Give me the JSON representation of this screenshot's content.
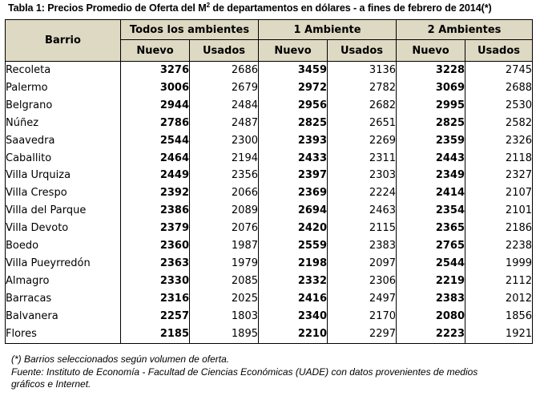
{
  "title_main": "Tabla 1: Precios Promedio de Oferta del M",
  "title_sup": "2",
  "title_rest": " de departamentos en dólares -  a fines de febrero de 2014(*)",
  "headers": {
    "barrio": "Barrio",
    "groups": [
      "Todos los ambientes",
      "1 Ambiente",
      "2 Ambientes"
    ],
    "nuevo": "Nuevo",
    "usados": "Usados"
  },
  "rows": [
    {
      "barrio": "Recoleta",
      "v": [
        "3276",
        "2686",
        "3459",
        "3136",
        "3228",
        "2745"
      ]
    },
    {
      "barrio": "Palermo",
      "v": [
        "3006",
        "2679",
        "2972",
        "2782",
        "3069",
        "2688"
      ]
    },
    {
      "barrio": "Belgrano",
      "v": [
        "2944",
        "2484",
        "2956",
        "2682",
        "2995",
        "2530"
      ]
    },
    {
      "barrio": "Núñez",
      "v": [
        "2786",
        "2487",
        "2825",
        "2651",
        "2825",
        "2582"
      ]
    },
    {
      "barrio": "Saavedra",
      "v": [
        "2544",
        "2300",
        "2393",
        "2269",
        "2359",
        "2326"
      ]
    },
    {
      "barrio": "Caballito",
      "v": [
        "2464",
        "2194",
        "2433",
        "2311",
        "2443",
        "2118"
      ]
    },
    {
      "barrio": "Villa Urquiza",
      "v": [
        "2449",
        "2356",
        "2397",
        "2303",
        "2349",
        "2327"
      ]
    },
    {
      "barrio": "Villa Crespo",
      "v": [
        "2392",
        "2066",
        "2369",
        "2224",
        "2414",
        "2107"
      ]
    },
    {
      "barrio": "Villa del Parque",
      "v": [
        "2386",
        "2089",
        "2694",
        "2463",
        "2354",
        "2101"
      ]
    },
    {
      "barrio": "Villa Devoto",
      "v": [
        "2379",
        "2076",
        "2420",
        "2115",
        "2365",
        "2186"
      ]
    },
    {
      "barrio": "Boedo",
      "v": [
        "2360",
        "1987",
        "2559",
        "2383",
        "2765",
        "2238"
      ]
    },
    {
      "barrio": "Villa Pueyrredón",
      "v": [
        "2363",
        "1979",
        "2198",
        "2097",
        "2544",
        "1999"
      ]
    },
    {
      "barrio": "Almagro",
      "v": [
        "2330",
        "2085",
        "2332",
        "2306",
        "2219",
        "2112"
      ]
    },
    {
      "barrio": "Barracas",
      "v": [
        "2316",
        "2025",
        "2416",
        "2497",
        "2383",
        "2012"
      ]
    },
    {
      "barrio": "Balvanera",
      "v": [
        "2257",
        "1803",
        "2340",
        "2170",
        "2080",
        "1856"
      ]
    },
    {
      "barrio": "Flores",
      "v": [
        "2185",
        "1895",
        "2210",
        "2297",
        "2223",
        "1921"
      ]
    }
  ],
  "footnote1": "(*) Barrios seleccionados según volumen de oferta.",
  "footnote2": "Fuente: Instituto de Economía  - Facultad de Ciencias Económicas (UADE)  con datos  provenientes de medios",
  "footnote3": "gráficos e Internet.",
  "colors": {
    "header_bg": "#ddd9c3",
    "border": "#000000"
  }
}
